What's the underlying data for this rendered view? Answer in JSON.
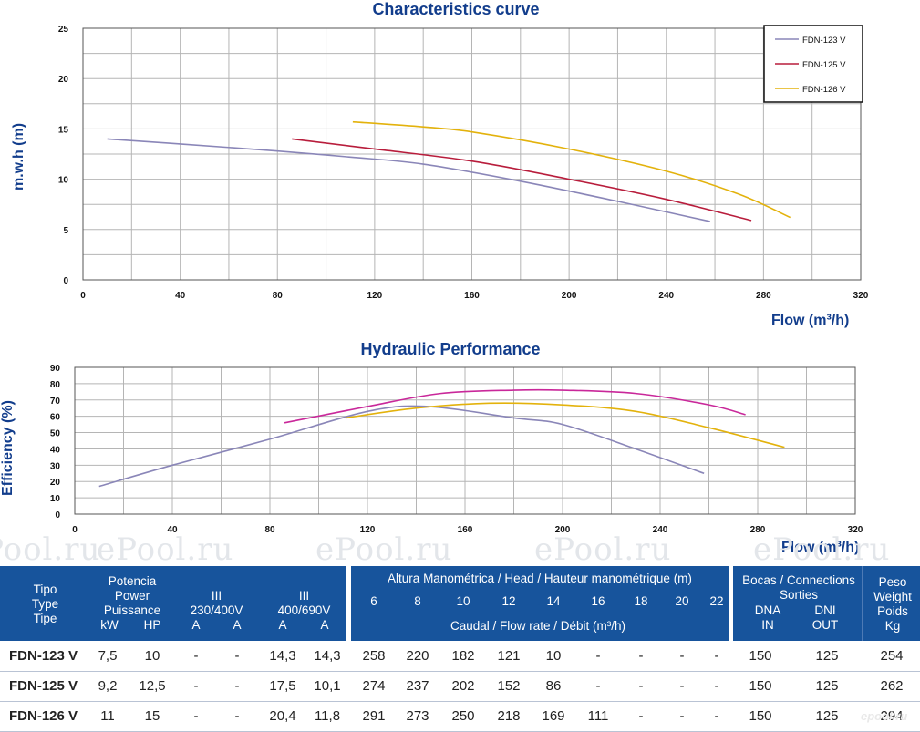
{
  "watermark": "ePool.ru",
  "corner_logo": "epool.ru",
  "chart_data": [
    {
      "type": "line",
      "title": "Characteristics curve",
      "xlabel": "Flow (m³/h)",
      "ylabel": "m.w.h (m)",
      "xlim": [
        0,
        320
      ],
      "ylim": [
        0,
        25
      ],
      "xticks": [
        0,
        40,
        80,
        120,
        160,
        200,
        240,
        280,
        320
      ],
      "yticks": [
        0,
        5,
        10,
        15,
        20,
        25
      ],
      "grid": true,
      "legend": "top-right",
      "series": [
        {
          "name": "FDN-123 V",
          "color": "#8a86b8",
          "x": [
            10,
            40,
            80,
            110,
            140,
            180,
            220,
            258
          ],
          "y": [
            14,
            13.5,
            12.8,
            12.2,
            11.5,
            9.8,
            7.8,
            5.8
          ]
        },
        {
          "name": "FDN-125 V",
          "color": "#b81d3c",
          "x": [
            86,
            120,
            160,
            200,
            240,
            275
          ],
          "y": [
            14,
            13,
            11.8,
            10,
            8,
            5.9
          ]
        },
        {
          "name": "FDN-126 V",
          "color": "#e3b20c",
          "x": [
            111,
            140,
            160,
            200,
            240,
            270,
            291
          ],
          "y": [
            15.7,
            15.2,
            14.7,
            13,
            10.8,
            8.5,
            6.2
          ]
        }
      ]
    },
    {
      "type": "line",
      "title": "Hydraulic Performance",
      "xlabel": "Flow (m³/h)",
      "ylabel": "Efficiency (%)",
      "xlim": [
        0,
        320
      ],
      "ylim": [
        0,
        90
      ],
      "xticks": [
        0,
        40,
        80,
        120,
        160,
        200,
        240,
        280,
        320
      ],
      "yticks": [
        0,
        10,
        20,
        30,
        40,
        50,
        60,
        70,
        80,
        90
      ],
      "grid": true,
      "series": [
        {
          "color": "#8a86b8",
          "x": [
            10,
            40,
            80,
            120,
            145,
            180,
            200,
            230,
            258
          ],
          "y": [
            17,
            30,
            46,
            63,
            66,
            59,
            55,
            40,
            25
          ]
        },
        {
          "color": "#c9289a",
          "x": [
            86,
            120,
            150,
            180,
            200,
            230,
            260,
            275
          ],
          "y": [
            56,
            66,
            74,
            76,
            76,
            74,
            67,
            61
          ]
        },
        {
          "color": "#e3b20c",
          "x": [
            111,
            140,
            170,
            200,
            230,
            260,
            291
          ],
          "y": [
            59,
            65,
            68,
            67,
            63,
            53,
            41
          ]
        }
      ]
    }
  ],
  "table": {
    "head": {
      "tipo": [
        "Tipo",
        "Type",
        "Tipe"
      ],
      "potencia": [
        "Potencia",
        "Power",
        "Puissance"
      ],
      "kw": "kW",
      "hp": "HP",
      "v1": [
        "III",
        "230/400V"
      ],
      "v2": [
        "III",
        "400/690V"
      ],
      "amp": "A",
      "altura": "Altura Manométrica / Head / Hauteur manométrique (m)",
      "heads": [
        "6",
        "8",
        "10",
        "12",
        "14",
        "16",
        "18",
        "20",
        "22"
      ],
      "caudal": "Caudal / Flow rate / Débit (m³/h)",
      "bocas": [
        "Bocas / Connections",
        "Sorties"
      ],
      "dna": [
        "DNA",
        "IN"
      ],
      "dni": [
        "DNI",
        "OUT"
      ],
      "peso": [
        "Peso",
        "Weight",
        "Poids",
        "Kg"
      ]
    },
    "rows": [
      {
        "model": "FDN-123 V",
        "kw": "7,5",
        "hp": "10",
        "a1": "-",
        "a2": "-",
        "a3": "14,3",
        "a4": "14,3",
        "flows": [
          "258",
          "220",
          "182",
          "121",
          "10",
          "-",
          "-",
          "-",
          "-"
        ],
        "in": "150",
        "out": "125",
        "kg": "254"
      },
      {
        "model": "FDN-125 V",
        "kw": "9,2",
        "hp": "12,5",
        "a1": "-",
        "a2": "-",
        "a3": "17,5",
        "a4": "10,1",
        "flows": [
          "274",
          "237",
          "202",
          "152",
          "86",
          "-",
          "-",
          "-",
          "-"
        ],
        "in": "150",
        "out": "125",
        "kg": "262"
      },
      {
        "model": "FDN-126 V",
        "kw": "11",
        "hp": "15",
        "a1": "-",
        "a2": "-",
        "a3": "20,4",
        "a4": "11,8",
        "flows": [
          "291",
          "273",
          "250",
          "218",
          "169",
          "111",
          "-",
          "-",
          "-"
        ],
        "in": "150",
        "out": "125",
        "kg": "294"
      }
    ]
  }
}
